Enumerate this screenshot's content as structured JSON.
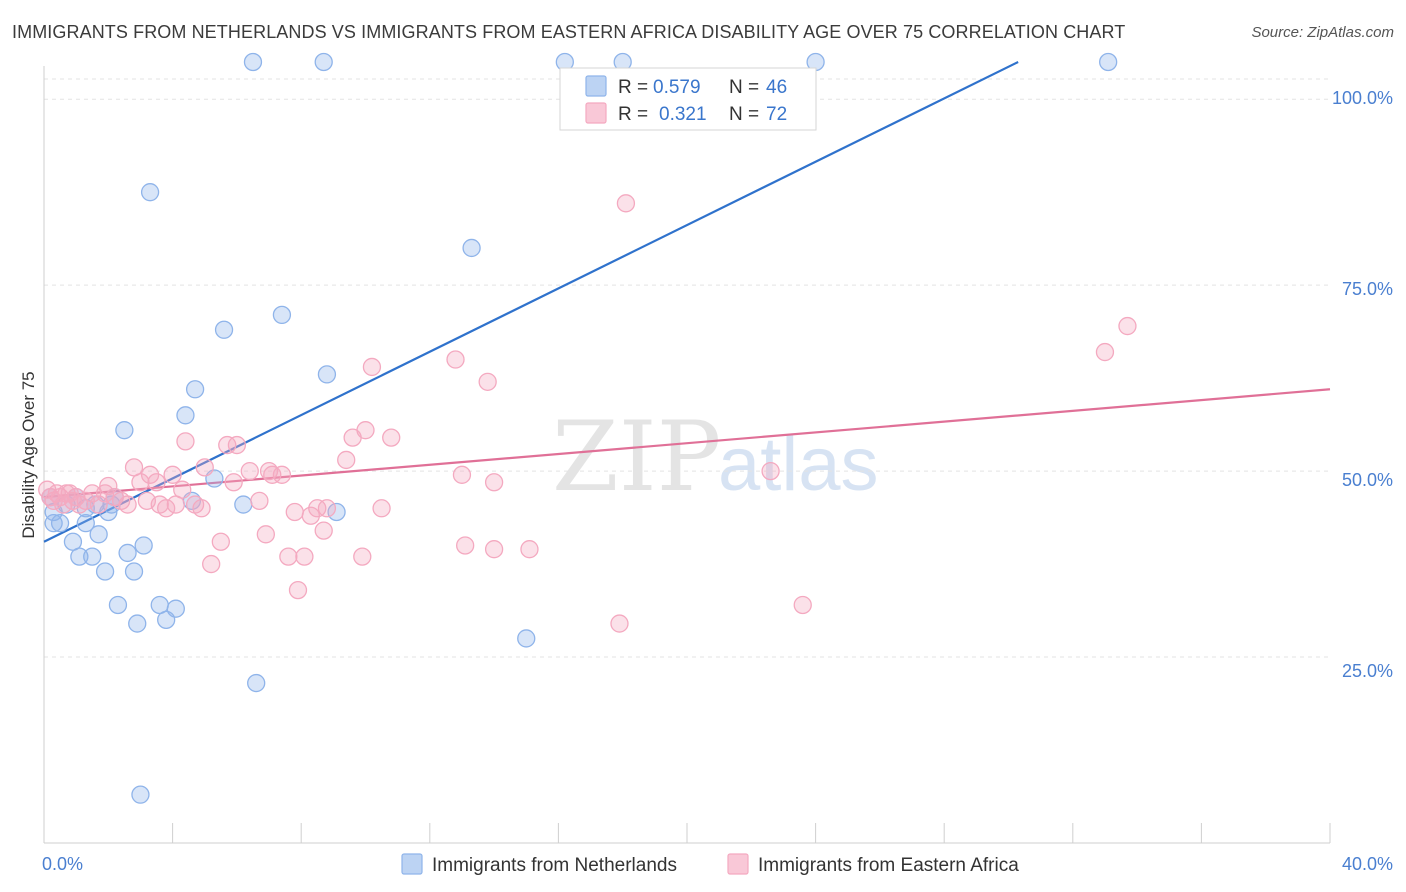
{
  "header": {
    "title": "IMMIGRANTS FROM NETHERLANDS VS IMMIGRANTS FROM EASTERN AFRICA DISABILITY AGE OVER 75 CORRELATION CHART",
    "source": "Source: ZipAtlas.com"
  },
  "watermark": {
    "zip": "ZIP",
    "atlas": "atlas"
  },
  "legend_box": {
    "rows": [
      {
        "r_label": "R =",
        "r_value": "0.579",
        "n_label": "N =",
        "n_value": "46"
      },
      {
        "r_label": "R =",
        "r_value": "0.321",
        "n_label": "N =",
        "n_value": "72"
      }
    ]
  },
  "chart_data": {
    "type": "scatter",
    "title": "IMMIGRANTS FROM NETHERLANDS VS IMMIGRANTS FROM EASTERN AFRICA DISABILITY AGE OVER 75 CORRELATION CHART",
    "xlabel": "",
    "ylabel": "Disability Age Over 75",
    "xlim": [
      0,
      40
    ],
    "ylim": [
      0,
      105
    ],
    "x_tick_labels": [
      "0.0%",
      "40.0%"
    ],
    "y_ticks": [
      25,
      50,
      75,
      100
    ],
    "y_tick_labels": [
      "25.0%",
      "50.0%",
      "75.0%",
      "100.0%"
    ],
    "grid": true,
    "legend_position": "bottom",
    "series": [
      {
        "name": "Immigrants from Netherlands",
        "color": "#8fb4ea",
        "line_color": "#2f72cc",
        "r": 0.579,
        "n": 46,
        "trend": [
          [
            0,
            40.5
          ],
          [
            30.3,
            105
          ]
        ],
        "points": [
          [
            0.2,
            46.5
          ],
          [
            0.3,
            44.5
          ],
          [
            0.3,
            43
          ],
          [
            0.5,
            43
          ],
          [
            0.7,
            45.5
          ],
          [
            0.9,
            40.5
          ],
          [
            1.1,
            38.5
          ],
          [
            1.3,
            45
          ],
          [
            1.3,
            43
          ],
          [
            1.5,
            38.5
          ],
          [
            1.6,
            45.5
          ],
          [
            1.7,
            41.5
          ],
          [
            1.9,
            36.5
          ],
          [
            2.0,
            44.5
          ],
          [
            2.1,
            45.5
          ],
          [
            2.2,
            46.5
          ],
          [
            2.3,
            32
          ],
          [
            2.5,
            55.5
          ],
          [
            2.6,
            39
          ],
          [
            2.8,
            36.5
          ],
          [
            2.9,
            29.5
          ],
          [
            3.1,
            40
          ],
          [
            3.3,
            87.5
          ],
          [
            3.6,
            32
          ],
          [
            3.8,
            30
          ],
          [
            4.1,
            31.5
          ],
          [
            4.4,
            57.5
          ],
          [
            4.6,
            46
          ],
          [
            4.7,
            61
          ],
          [
            5.3,
            49
          ],
          [
            5.6,
            69
          ],
          [
            6.2,
            45.5
          ],
          [
            6.5,
            105
          ],
          [
            6.6,
            21.5
          ],
          [
            7.4,
            71
          ],
          [
            8.7,
            105
          ],
          [
            8.8,
            63
          ],
          [
            9.1,
            44.5
          ],
          [
            13.3,
            80
          ],
          [
            15.0,
            27.5
          ],
          [
            16.2,
            105
          ],
          [
            18.0,
            105
          ],
          [
            24.0,
            105
          ],
          [
            33.1,
            105
          ],
          [
            3.0,
            6.5
          ],
          [
            1.0,
            46.5
          ]
        ]
      },
      {
        "name": "Immigrants from Eastern Africa",
        "color": "#f4a9c0",
        "line_color": "#e07097",
        "r": 0.321,
        "n": 72,
        "trend": [
          [
            0,
            46.5
          ],
          [
            40,
            61
          ]
        ],
        "points": [
          [
            0.1,
            47.5
          ],
          [
            0.2,
            46.5
          ],
          [
            0.3,
            46
          ],
          [
            0.4,
            47
          ],
          [
            0.5,
            46.5
          ],
          [
            0.6,
            45.5
          ],
          [
            0.7,
            47
          ],
          [
            0.8,
            47
          ],
          [
            0.9,
            46
          ],
          [
            1.0,
            46.5
          ],
          [
            1.1,
            45.5
          ],
          [
            1.3,
            46
          ],
          [
            1.5,
            47
          ],
          [
            1.7,
            45.5
          ],
          [
            1.9,
            47
          ],
          [
            2.0,
            48
          ],
          [
            2.2,
            46.5
          ],
          [
            2.4,
            46
          ],
          [
            2.6,
            45.5
          ],
          [
            2.8,
            50.5
          ],
          [
            3.0,
            48.5
          ],
          [
            3.2,
            46
          ],
          [
            3.3,
            49.5
          ],
          [
            3.5,
            48.5
          ],
          [
            3.6,
            45.5
          ],
          [
            3.8,
            45
          ],
          [
            4.0,
            49.5
          ],
          [
            4.1,
            45.5
          ],
          [
            4.3,
            47.5
          ],
          [
            4.4,
            54
          ],
          [
            4.7,
            45.5
          ],
          [
            4.9,
            45
          ],
          [
            5.0,
            50.5
          ],
          [
            5.2,
            37.5
          ],
          [
            5.5,
            40.5
          ],
          [
            5.7,
            53.5
          ],
          [
            5.9,
            48.5
          ],
          [
            6.0,
            53.5
          ],
          [
            6.4,
            50
          ],
          [
            6.7,
            46
          ],
          [
            6.9,
            41.5
          ],
          [
            7.0,
            50
          ],
          [
            7.1,
            49.5
          ],
          [
            7.4,
            49.5
          ],
          [
            7.6,
            38.5
          ],
          [
            7.8,
            44.5
          ],
          [
            7.9,
            34
          ],
          [
            8.1,
            38.5
          ],
          [
            8.3,
            44
          ],
          [
            8.5,
            45
          ],
          [
            8.7,
            42
          ],
          [
            8.8,
            45
          ],
          [
            9.4,
            51.5
          ],
          [
            9.6,
            54.5
          ],
          [
            9.9,
            38.5
          ],
          [
            10.0,
            55.5
          ],
          [
            10.2,
            64
          ],
          [
            10.5,
            45
          ],
          [
            10.8,
            54.5
          ],
          [
            12.8,
            65
          ],
          [
            13.0,
            49.5
          ],
          [
            13.1,
            40
          ],
          [
            13.8,
            62
          ],
          [
            14.0,
            48.5
          ],
          [
            14.0,
            39.5
          ],
          [
            15.1,
            39.5
          ],
          [
            17.9,
            29.5
          ],
          [
            18.1,
            86
          ],
          [
            22.6,
            50
          ],
          [
            23.6,
            32
          ],
          [
            33.0,
            66
          ],
          [
            33.7,
            69.5
          ]
        ]
      }
    ]
  }
}
